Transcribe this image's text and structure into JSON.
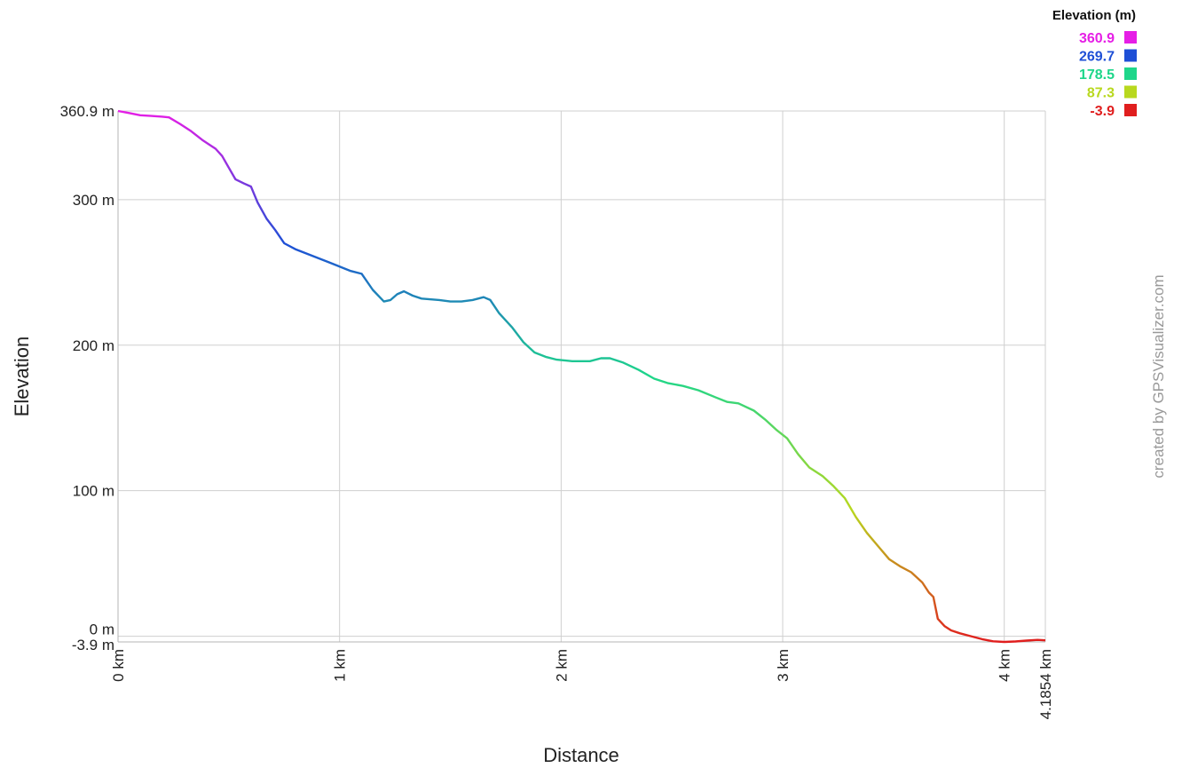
{
  "chart_data": {
    "type": "line",
    "xlabel": "Distance",
    "ylabel": "Elevation",
    "xlim": [
      0,
      4.1854
    ],
    "ylim": [
      -3.9,
      360.9
    ],
    "x_ticks": [
      {
        "value": 0,
        "label": "0 km"
      },
      {
        "value": 1,
        "label": "1 km"
      },
      {
        "value": 2,
        "label": "2 km"
      },
      {
        "value": 3,
        "label": "3 km"
      },
      {
        "value": 4,
        "label": "4 km"
      },
      {
        "value": 4.1854,
        "label": "4.1854 km"
      }
    ],
    "y_ticks": [
      {
        "value": 360.9,
        "label": "360.9 m"
      },
      {
        "value": 300,
        "label": "300 m"
      },
      {
        "value": 200,
        "label": "200 m"
      },
      {
        "value": 100,
        "label": "100 m"
      },
      {
        "value": 0,
        "label": "0 m"
      },
      {
        "value": -3.9,
        "label": "-3.9 m"
      }
    ],
    "grid": true,
    "legend_position": "top-right",
    "legend": {
      "title": "Elevation (m)",
      "entries": [
        {
          "label": "360.9",
          "color": "#e61ee6"
        },
        {
          "label": "269.7",
          "color": "#1e4fd6"
        },
        {
          "label": "178.5",
          "color": "#1ed68a"
        },
        {
          "label": "87.3",
          "color": "#b8d81e"
        },
        {
          "label": "-3.9",
          "color": "#e01e1e"
        }
      ]
    },
    "credit": "created by GPSVisualizer.com",
    "series": [
      {
        "points": [
          [
            0,
            360.9
          ],
          [
            0.05,
            359.5
          ],
          [
            0.1,
            358
          ],
          [
            0.15,
            357.5
          ],
          [
            0.2,
            357
          ],
          [
            0.23,
            356.5
          ],
          [
            0.28,
            352
          ],
          [
            0.33,
            347
          ],
          [
            0.38,
            341
          ],
          [
            0.42,
            337
          ],
          [
            0.44,
            335
          ],
          [
            0.47,
            330
          ],
          [
            0.5,
            322
          ],
          [
            0.53,
            314
          ],
          [
            0.57,
            311
          ],
          [
            0.6,
            309
          ],
          [
            0.63,
            298
          ],
          [
            0.67,
            287
          ],
          [
            0.71,
            279
          ],
          [
            0.75,
            270
          ],
          [
            0.8,
            266
          ],
          [
            0.85,
            263
          ],
          [
            0.9,
            260
          ],
          [
            0.95,
            257
          ],
          [
            1.0,
            254
          ],
          [
            1.05,
            251
          ],
          [
            1.1,
            249
          ],
          [
            1.15,
            238
          ],
          [
            1.2,
            230
          ],
          [
            1.23,
            231
          ],
          [
            1.26,
            235
          ],
          [
            1.29,
            237
          ],
          [
            1.33,
            234
          ],
          [
            1.37,
            232
          ],
          [
            1.45,
            231
          ],
          [
            1.5,
            230
          ],
          [
            1.55,
            230
          ],
          [
            1.6,
            231
          ],
          [
            1.65,
            233
          ],
          [
            1.68,
            231
          ],
          [
            1.72,
            222
          ],
          [
            1.78,
            212
          ],
          [
            1.83,
            202
          ],
          [
            1.88,
            195
          ],
          [
            1.93,
            192
          ],
          [
            1.98,
            190
          ],
          [
            2.05,
            189
          ],
          [
            2.13,
            189
          ],
          [
            2.18,
            191
          ],
          [
            2.22,
            191
          ],
          [
            2.28,
            188
          ],
          [
            2.35,
            183
          ],
          [
            2.42,
            177
          ],
          [
            2.48,
            174
          ],
          [
            2.55,
            172
          ],
          [
            2.62,
            169
          ],
          [
            2.7,
            164
          ],
          [
            2.75,
            161
          ],
          [
            2.8,
            160
          ],
          [
            2.87,
            155
          ],
          [
            2.92,
            149
          ],
          [
            2.97,
            142
          ],
          [
            3.02,
            136
          ],
          [
            3.07,
            125
          ],
          [
            3.12,
            116
          ],
          [
            3.18,
            110
          ],
          [
            3.23,
            103
          ],
          [
            3.28,
            95
          ],
          [
            3.33,
            82
          ],
          [
            3.38,
            71
          ],
          [
            3.43,
            62
          ],
          [
            3.48,
            53
          ],
          [
            3.53,
            48
          ],
          [
            3.58,
            44
          ],
          [
            3.63,
            37
          ],
          [
            3.66,
            30
          ],
          [
            3.68,
            27
          ],
          [
            3.7,
            12
          ],
          [
            3.73,
            7
          ],
          [
            3.76,
            4
          ],
          [
            3.8,
            2
          ],
          [
            3.85,
            0
          ],
          [
            3.9,
            -2
          ],
          [
            3.95,
            -3.5
          ],
          [
            4.0,
            -3.9
          ],
          [
            4.05,
            -3.6
          ],
          [
            4.1,
            -3.0
          ],
          [
            4.15,
            -2.5
          ],
          [
            4.1854,
            -2.8
          ]
        ]
      }
    ]
  }
}
